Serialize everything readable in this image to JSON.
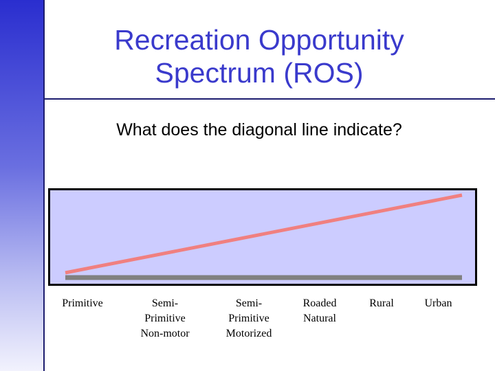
{
  "slide": {
    "title": "Recreation Opportunity\nSpectrum (ROS)",
    "question": "What does the diagonal line indicate?"
  },
  "spectrum": {
    "categories": [
      "Primitive",
      "Semi-\nPrimitive\nNon-motor",
      "Semi-\nPrimitive\nMotorized",
      "Roaded\nNatural",
      "Rural",
      "Urban"
    ]
  },
  "colors": {
    "title": "#3a3acc",
    "panel_fill": "#ccccff",
    "diagonal_line": "#f08080",
    "baseline": "#808080"
  }
}
